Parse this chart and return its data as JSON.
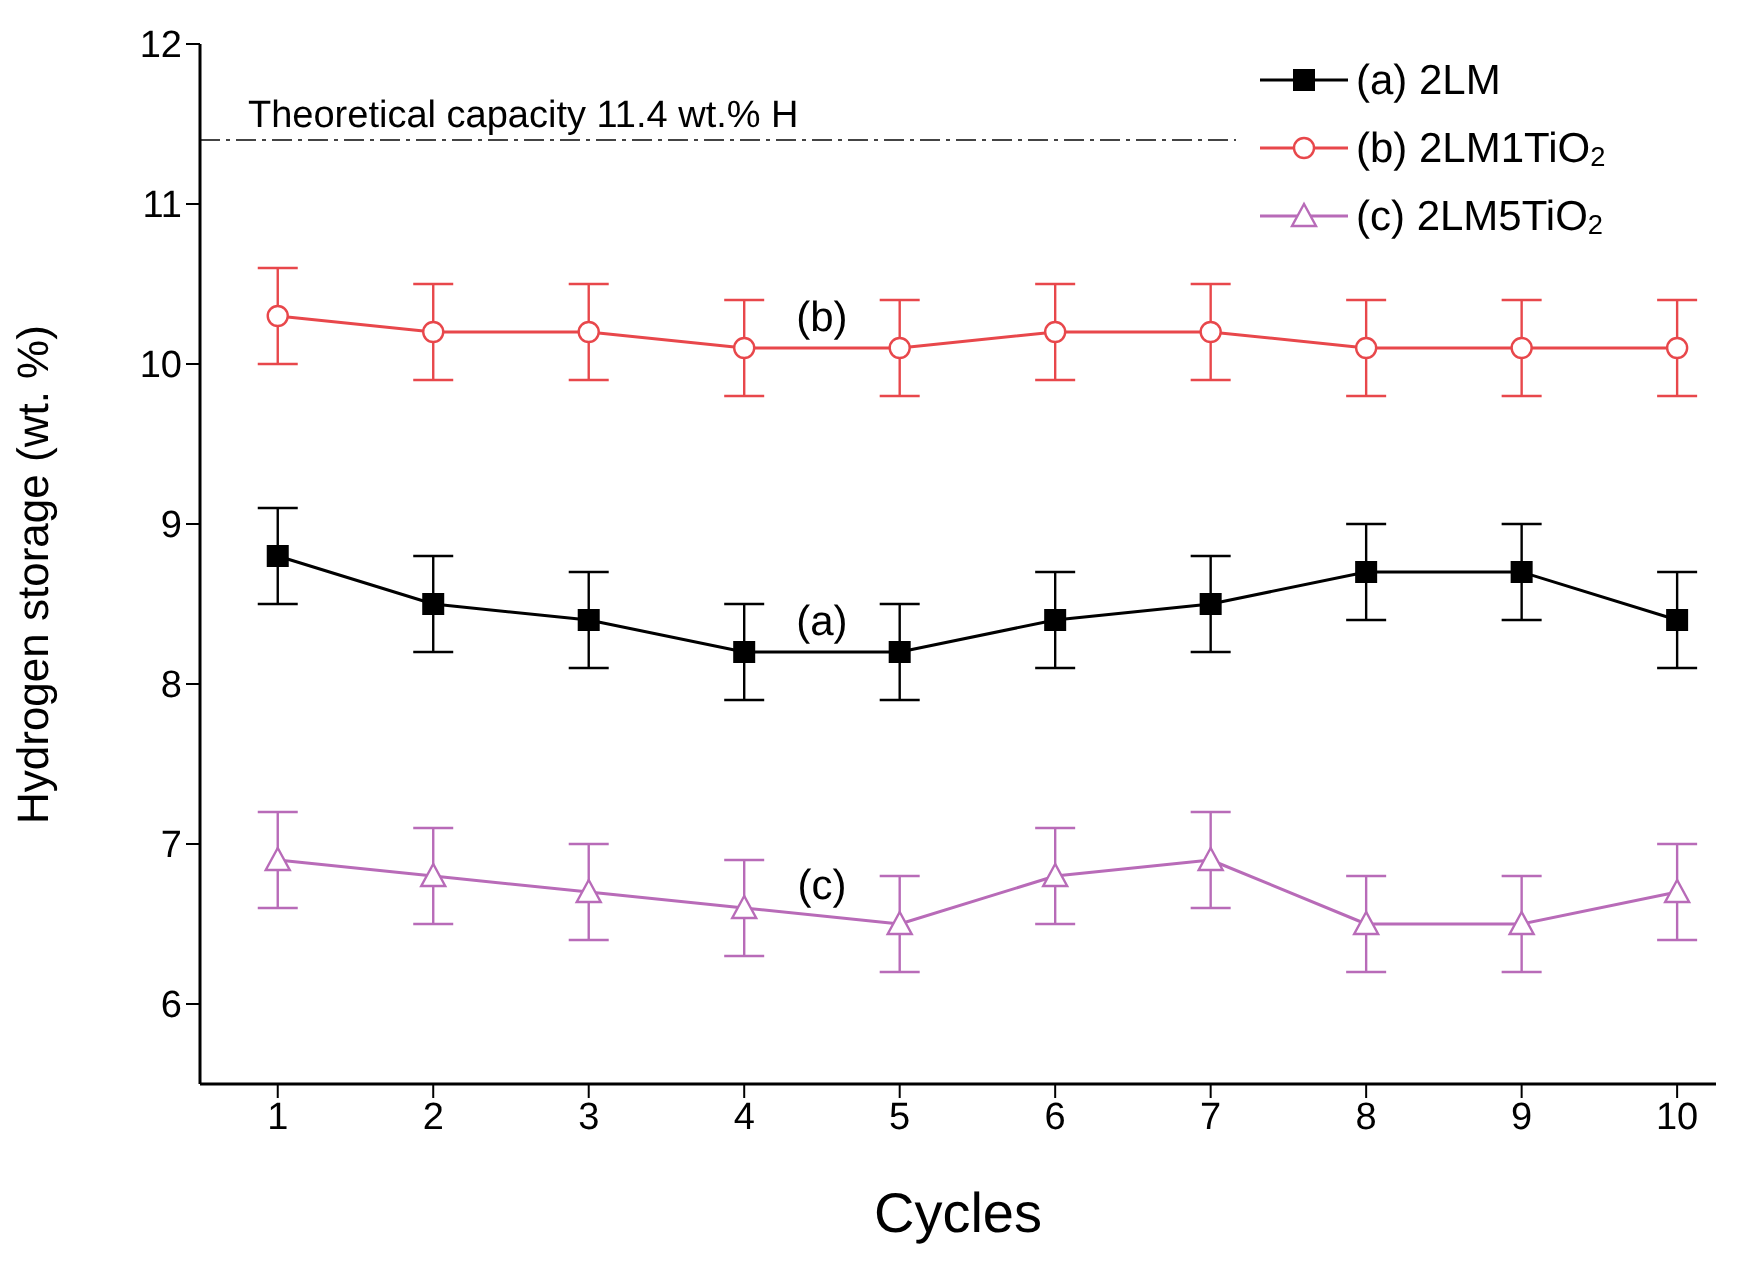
{
  "chart_data": {
    "type": "line",
    "xlabel": "Cycles",
    "ylabel": "Hydrogen storage (wt. %)",
    "x": [
      1,
      2,
      3,
      4,
      5,
      6,
      7,
      8,
      9,
      10
    ],
    "series": [
      {
        "name": "(a) 2LM",
        "color": "#000000",
        "marker": "square",
        "values": [
          8.8,
          8.5,
          8.4,
          8.2,
          8.2,
          8.4,
          8.5,
          8.7,
          8.7,
          8.4
        ],
        "errors": [
          0.3,
          0.3,
          0.3,
          0.3,
          0.3,
          0.3,
          0.3,
          0.3,
          0.3,
          0.3
        ]
      },
      {
        "name": "(b) 2LM1TiO$_{2}$",
        "color": "#e8474b",
        "marker": "circle",
        "values": [
          10.3,
          10.2,
          10.2,
          10.1,
          10.1,
          10.2,
          10.2,
          10.1,
          10.1,
          10.1
        ],
        "errors": [
          0.3,
          0.3,
          0.3,
          0.3,
          0.3,
          0.3,
          0.3,
          0.3,
          0.3,
          0.3
        ]
      },
      {
        "name": "(c) 2LM5TiO$_{2}$",
        "color": "#b86bb8",
        "marker": "triangle",
        "values": [
          6.9,
          6.8,
          6.7,
          6.6,
          6.5,
          6.8,
          6.9,
          6.5,
          6.5,
          6.7
        ],
        "errors": [
          0.3,
          0.3,
          0.3,
          0.3,
          0.3,
          0.3,
          0.3,
          0.3,
          0.3,
          0.3
        ]
      }
    ],
    "xlim": [
      0.5,
      10.25
    ],
    "xticks": [
      1,
      2,
      3,
      4,
      5,
      6,
      7,
      8,
      9,
      10
    ],
    "ylim": [
      5.5,
      12
    ],
    "yticks": [
      6,
      7,
      8,
      9,
      10,
      11,
      12
    ],
    "ref_lines": [
      {
        "axis": "y",
        "value": 11.4,
        "label": "Theoretical capacity 11.4 wt.% H",
        "color": "#444444",
        "line_style": "dashed"
      }
    ],
    "annotations": [
      "(a)",
      "(b)",
      "(c)"
    ],
    "grid": false,
    "legend": "top right",
    "line_style": "solid"
  }
}
